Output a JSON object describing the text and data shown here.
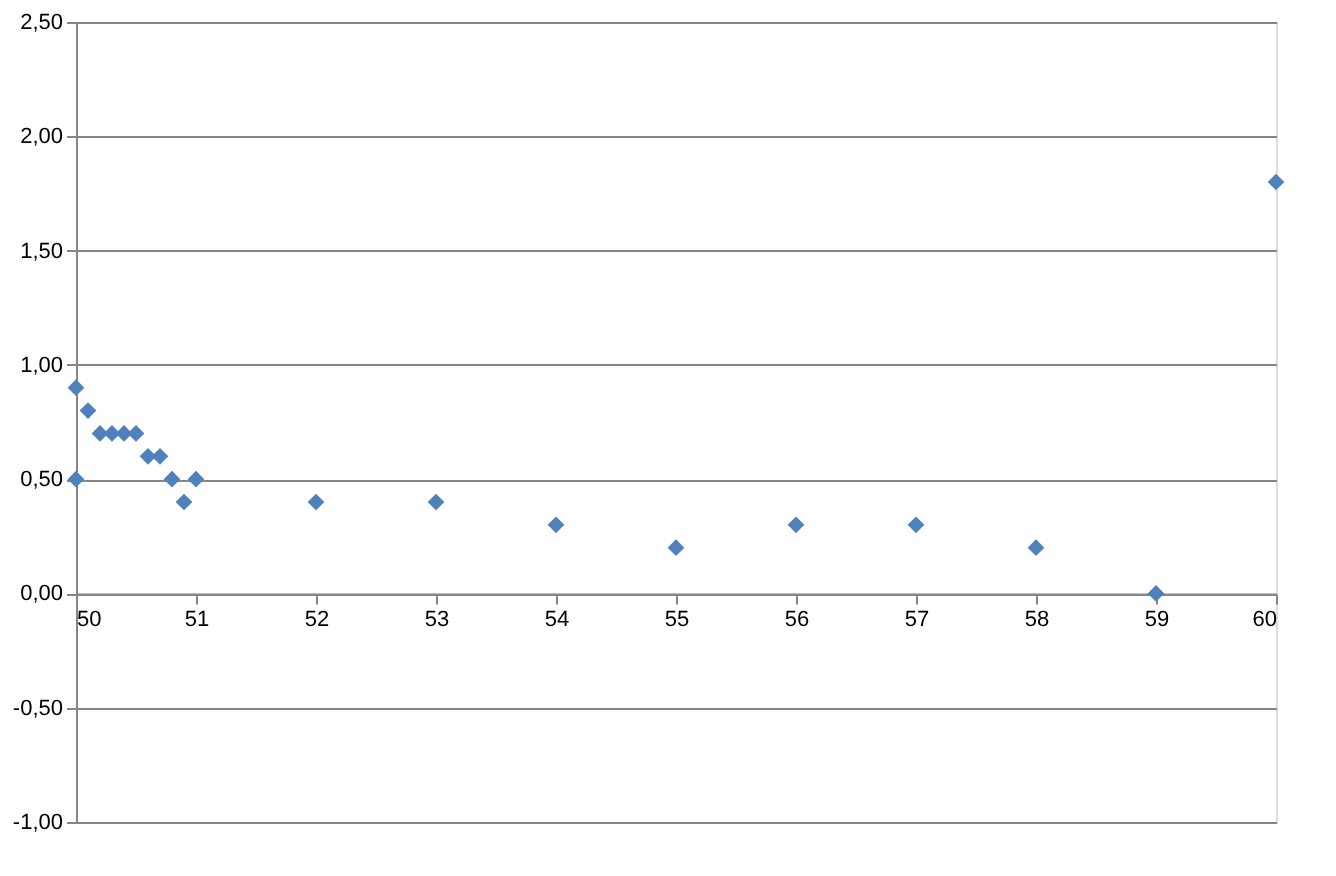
{
  "chart_data": {
    "type": "scatter",
    "marker": "diamond",
    "grid": "y",
    "x": [
      50,
      50,
      50.1,
      50.2,
      50.3,
      50.4,
      50.5,
      50.6,
      50.7,
      50.8,
      50.9,
      51,
      52,
      53,
      54,
      55,
      56,
      57,
      58,
      59,
      60
    ],
    "series": [
      {
        "color": "#4f81bd",
        "values": [
          0.9,
          0.5,
          0.8,
          0.7,
          0.7,
          0.7,
          0.7,
          0.6,
          0.6,
          0.5,
          0.4,
          0.5,
          0.4,
          0.4,
          0.3,
          0.2,
          0.3,
          0.3,
          0.2,
          0,
          1.8
        ]
      }
    ],
    "xlim": [
      50,
      60
    ],
    "xticks": [
      50,
      51,
      52,
      53,
      54,
      55,
      56,
      57,
      58,
      59,
      60
    ],
    "ylim": [
      -1,
      2.5
    ],
    "yticks": [
      {
        "value": -1,
        "label": "-1,00"
      },
      {
        "value": -0.5,
        "label": "-0,50"
      },
      {
        "value": 0,
        "label": "0,00"
      },
      {
        "value": 0.5,
        "label": "0,50"
      },
      {
        "value": 1,
        "label": "1,00"
      },
      {
        "value": 1.5,
        "label": "1,50"
      },
      {
        "value": 2,
        "label": "2,00"
      },
      {
        "value": 2.5,
        "label": "2,50"
      }
    ]
  }
}
